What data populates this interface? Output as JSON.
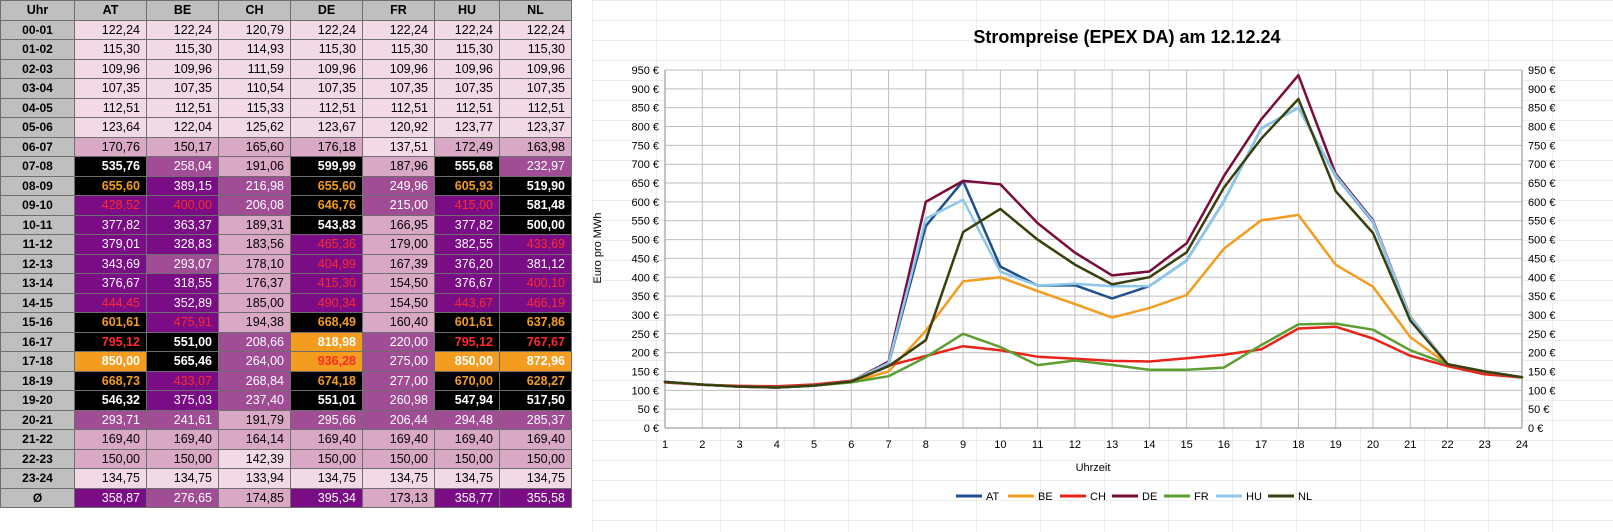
{
  "table": {
    "hour_header": "Uhr",
    "countries": [
      "AT",
      "BE",
      "CH",
      "DE",
      "FR",
      "HU",
      "NL"
    ],
    "rows": [
      {
        "hour": "00-01",
        "values": [
          "122,24",
          "122,24",
          "120,79",
          "122,24",
          "122,24",
          "122,24",
          "122,24"
        ]
      },
      {
        "hour": "01-02",
        "values": [
          "115,30",
          "115,30",
          "114,93",
          "115,30",
          "115,30",
          "115,30",
          "115,30"
        ]
      },
      {
        "hour": "02-03",
        "values": [
          "109,96",
          "109,96",
          "111,59",
          "109,96",
          "109,96",
          "109,96",
          "109,96"
        ]
      },
      {
        "hour": "03-04",
        "values": [
          "107,35",
          "107,35",
          "110,54",
          "107,35",
          "107,35",
          "107,35",
          "107,35"
        ]
      },
      {
        "hour": "04-05",
        "values": [
          "112,51",
          "112,51",
          "115,33",
          "112,51",
          "112,51",
          "112,51",
          "112,51"
        ]
      },
      {
        "hour": "05-06",
        "values": [
          "123,64",
          "122,04",
          "125,62",
          "123,67",
          "120,92",
          "123,77",
          "123,37"
        ]
      },
      {
        "hour": "06-07",
        "values": [
          "170,76",
          "150,17",
          "165,60",
          "176,18",
          "137,51",
          "172,49",
          "163,98"
        ]
      },
      {
        "hour": "07-08",
        "values": [
          "535,76",
          "258,04",
          "191,06",
          "599,99",
          "187,96",
          "555,68",
          "232,97"
        ]
      },
      {
        "hour": "08-09",
        "values": [
          "655,60",
          "389,15",
          "216,98",
          "655,60",
          "249,96",
          "605,93",
          "519,90"
        ]
      },
      {
        "hour": "09-10",
        "values": [
          "428,52",
          "400,00",
          "206,08",
          "646,76",
          "215,00",
          "415,00",
          "581,48"
        ]
      },
      {
        "hour": "10-11",
        "values": [
          "377,82",
          "363,37",
          "189,31",
          "543,83",
          "166,95",
          "377,82",
          "500,00"
        ]
      },
      {
        "hour": "11-12",
        "values": [
          "379,01",
          "328,83",
          "183,56",
          "465,36",
          "179,00",
          "382,55",
          "433,69"
        ]
      },
      {
        "hour": "12-13",
        "values": [
          "343,69",
          "293,07",
          "178,10",
          "404,99",
          "167,39",
          "376,20",
          "381,12"
        ]
      },
      {
        "hour": "13-14",
        "values": [
          "376,67",
          "318,55",
          "176,37",
          "415,30",
          "154,50",
          "376,67",
          "400,10"
        ]
      },
      {
        "hour": "14-15",
        "values": [
          "444,45",
          "352,89",
          "185,00",
          "490,34",
          "154,50",
          "443,67",
          "466,19"
        ]
      },
      {
        "hour": "15-16",
        "values": [
          "601,61",
          "475,91",
          "194,38",
          "668,49",
          "160,40",
          "601,61",
          "637,86"
        ]
      },
      {
        "hour": "16-17",
        "values": [
          "795,12",
          "551,00",
          "208,66",
          "818,98",
          "220,00",
          "795,12",
          "767,67"
        ]
      },
      {
        "hour": "17-18",
        "values": [
          "850,00",
          "565,46",
          "264,00",
          "936,28",
          "275,00",
          "850,00",
          "872,96"
        ]
      },
      {
        "hour": "18-19",
        "values": [
          "668,73",
          "433,07",
          "268,84",
          "674,18",
          "277,00",
          "670,00",
          "628,27"
        ]
      },
      {
        "hour": "19-20",
        "values": [
          "546,32",
          "375,03",
          "237,40",
          "551,01",
          "260,98",
          "547,94",
          "517,50"
        ]
      },
      {
        "hour": "20-21",
        "values": [
          "293,71",
          "241,61",
          "191,79",
          "295,66",
          "206,44",
          "294,48",
          "285,37"
        ]
      },
      {
        "hour": "21-22",
        "values": [
          "169,40",
          "169,40",
          "164,14",
          "169,40",
          "169,40",
          "169,40",
          "169,40"
        ]
      },
      {
        "hour": "22-23",
        "values": [
          "150,00",
          "150,00",
          "142,39",
          "150,00",
          "150,00",
          "150,00",
          "150,00"
        ]
      },
      {
        "hour": "23-24",
        "values": [
          "134,75",
          "134,75",
          "133,94",
          "134,75",
          "134,75",
          "134,75",
          "134,75"
        ]
      }
    ],
    "average_row": {
      "hour": "Ø",
      "values": [
        "358,87",
        "276,65",
        "174,85",
        "395,34",
        "173,13",
        "358,77",
        "355,58"
      ]
    },
    "color_scale": [
      {
        "min": 0,
        "max": 150,
        "bg": "#f2d9e6",
        "fg": "#000000",
        "bold": false
      },
      {
        "min": 150,
        "max": 200,
        "bg": "#d9a8c5",
        "fg": "#000000",
        "bold": false
      },
      {
        "min": 200,
        "max": 300,
        "bg": "#a04d96",
        "fg": "#ffffff",
        "bold": false
      },
      {
        "min": 300,
        "max": 400,
        "bg": "#7a0c86",
        "fg": "#ffffff",
        "bold": false
      },
      {
        "min": 400,
        "max": 500,
        "bg": "#7a0c86",
        "fg": "#ff2a2a",
        "bold": false
      },
      {
        "min": 500,
        "max": 600,
        "bg": "#000000",
        "fg": "#ffffff",
        "bold": true
      },
      {
        "min": 600,
        "max": 700,
        "bg": "#000000",
        "fg": "#f39c1f",
        "bold": true
      },
      {
        "min": 700,
        "max": 800,
        "bg": "#000000",
        "fg": "#ff2a2a",
        "bold": true
      },
      {
        "min": 800,
        "max": 900,
        "bg": "#f39c1f",
        "fg": "#ffffff",
        "bold": true
      },
      {
        "min": 900,
        "max": 2000,
        "bg": "#f39c1f",
        "fg": "#ff2a2a",
        "bold": true
      }
    ]
  },
  "chart_data": {
    "type": "line",
    "title": "Strompreise (EPEX DA) am 12.12.24",
    "xlabel": "Uhrzeit",
    "ylabel": "Euro pro MWh",
    "x": [
      1,
      2,
      3,
      4,
      5,
      6,
      7,
      8,
      9,
      10,
      11,
      12,
      13,
      14,
      15,
      16,
      17,
      18,
      19,
      20,
      21,
      22,
      23,
      24
    ],
    "ylim": [
      0,
      950
    ],
    "ytick_step": 50,
    "ytick_suffix": " €",
    "grid": true,
    "legend_position": "bottom",
    "series": [
      {
        "name": "AT",
        "color": "#1f4e8c",
        "values": [
          122.24,
          115.3,
          109.96,
          107.35,
          112.51,
          123.64,
          170.76,
          535.76,
          655.6,
          428.52,
          377.82,
          379.01,
          343.69,
          376.67,
          444.45,
          601.61,
          795.12,
          850.0,
          668.73,
          546.32,
          293.71,
          169.4,
          150.0,
          134.75
        ]
      },
      {
        "name": "BE",
        "color": "#f39c1f",
        "values": [
          122.24,
          115.3,
          109.96,
          107.35,
          112.51,
          122.04,
          150.17,
          258.04,
          389.15,
          400.0,
          363.37,
          328.83,
          293.07,
          318.55,
          352.89,
          475.91,
          551.0,
          565.46,
          433.07,
          375.03,
          241.61,
          169.4,
          150.0,
          134.75
        ]
      },
      {
        "name": "CH",
        "color": "#e8241a",
        "values": [
          120.79,
          114.93,
          111.59,
          110.54,
          115.33,
          125.62,
          165.6,
          191.06,
          216.98,
          206.08,
          189.31,
          183.56,
          178.1,
          176.37,
          185.0,
          194.38,
          208.66,
          264.0,
          268.84,
          237.4,
          191.79,
          164.14,
          142.39,
          133.94
        ]
      },
      {
        "name": "DE",
        "color": "#7a0c3a",
        "values": [
          122.24,
          115.3,
          109.96,
          107.35,
          112.51,
          123.67,
          176.18,
          599.99,
          655.6,
          646.76,
          543.83,
          465.36,
          404.99,
          415.3,
          490.34,
          668.49,
          818.98,
          936.28,
          674.18,
          551.01,
          295.66,
          169.4,
          150.0,
          134.75
        ]
      },
      {
        "name": "FR",
        "color": "#5d9e32",
        "values": [
          122.24,
          115.3,
          109.96,
          107.35,
          112.51,
          120.92,
          137.51,
          187.96,
          249.96,
          215.0,
          166.95,
          179.0,
          167.39,
          154.5,
          154.5,
          160.4,
          220.0,
          275.0,
          277.0,
          260.98,
          206.44,
          169.4,
          150.0,
          134.75
        ]
      },
      {
        "name": "HU",
        "color": "#8ec7ec",
        "values": [
          122.24,
          115.3,
          109.96,
          107.35,
          112.51,
          123.77,
          172.49,
          555.68,
          605.93,
          415.0,
          377.82,
          382.55,
          376.2,
          376.67,
          443.67,
          601.61,
          795.12,
          850.0,
          670.0,
          547.94,
          294.48,
          169.4,
          150.0,
          134.75
        ]
      },
      {
        "name": "NL",
        "color": "#3a3f0e",
        "values": [
          122.24,
          115.3,
          109.96,
          107.35,
          112.51,
          123.37,
          163.98,
          232.97,
          519.9,
          581.48,
          500.0,
          433.69,
          381.12,
          400.1,
          466.19,
          637.86,
          767.67,
          872.96,
          628.27,
          517.5,
          285.37,
          169.4,
          150.0,
          134.75
        ]
      }
    ]
  }
}
